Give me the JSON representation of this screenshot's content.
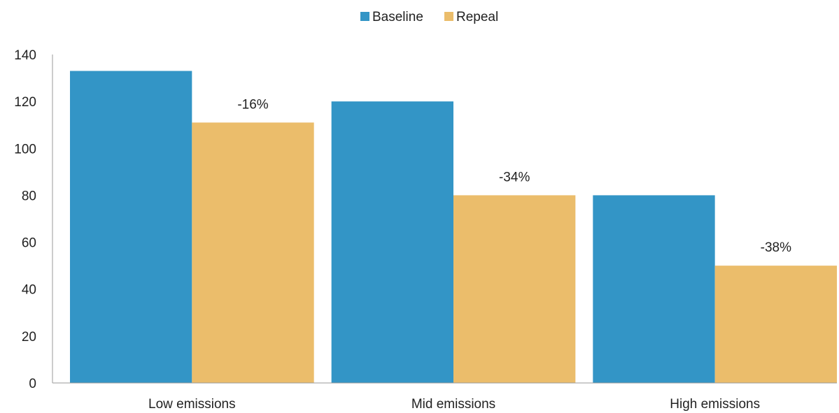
{
  "chart_data": {
    "type": "bar",
    "title": "",
    "xlabel": "",
    "ylabel": "",
    "categories": [
      "Low emissions",
      "Mid emissions",
      "High emissions"
    ],
    "series": [
      {
        "name": "Baseline",
        "color": "#3395C6",
        "values": [
          133,
          120,
          80
        ]
      },
      {
        "name": "Repeal",
        "color": "#EBBD6B",
        "values": [
          111,
          80,
          50
        ]
      }
    ],
    "annotations": [
      "-16%",
      "-34%",
      "-38%"
    ],
    "ylim": [
      0,
      140
    ],
    "yticks": [
      0,
      20,
      40,
      60,
      80,
      100,
      120,
      140
    ],
    "grid": false,
    "legend_position": "top-center"
  }
}
